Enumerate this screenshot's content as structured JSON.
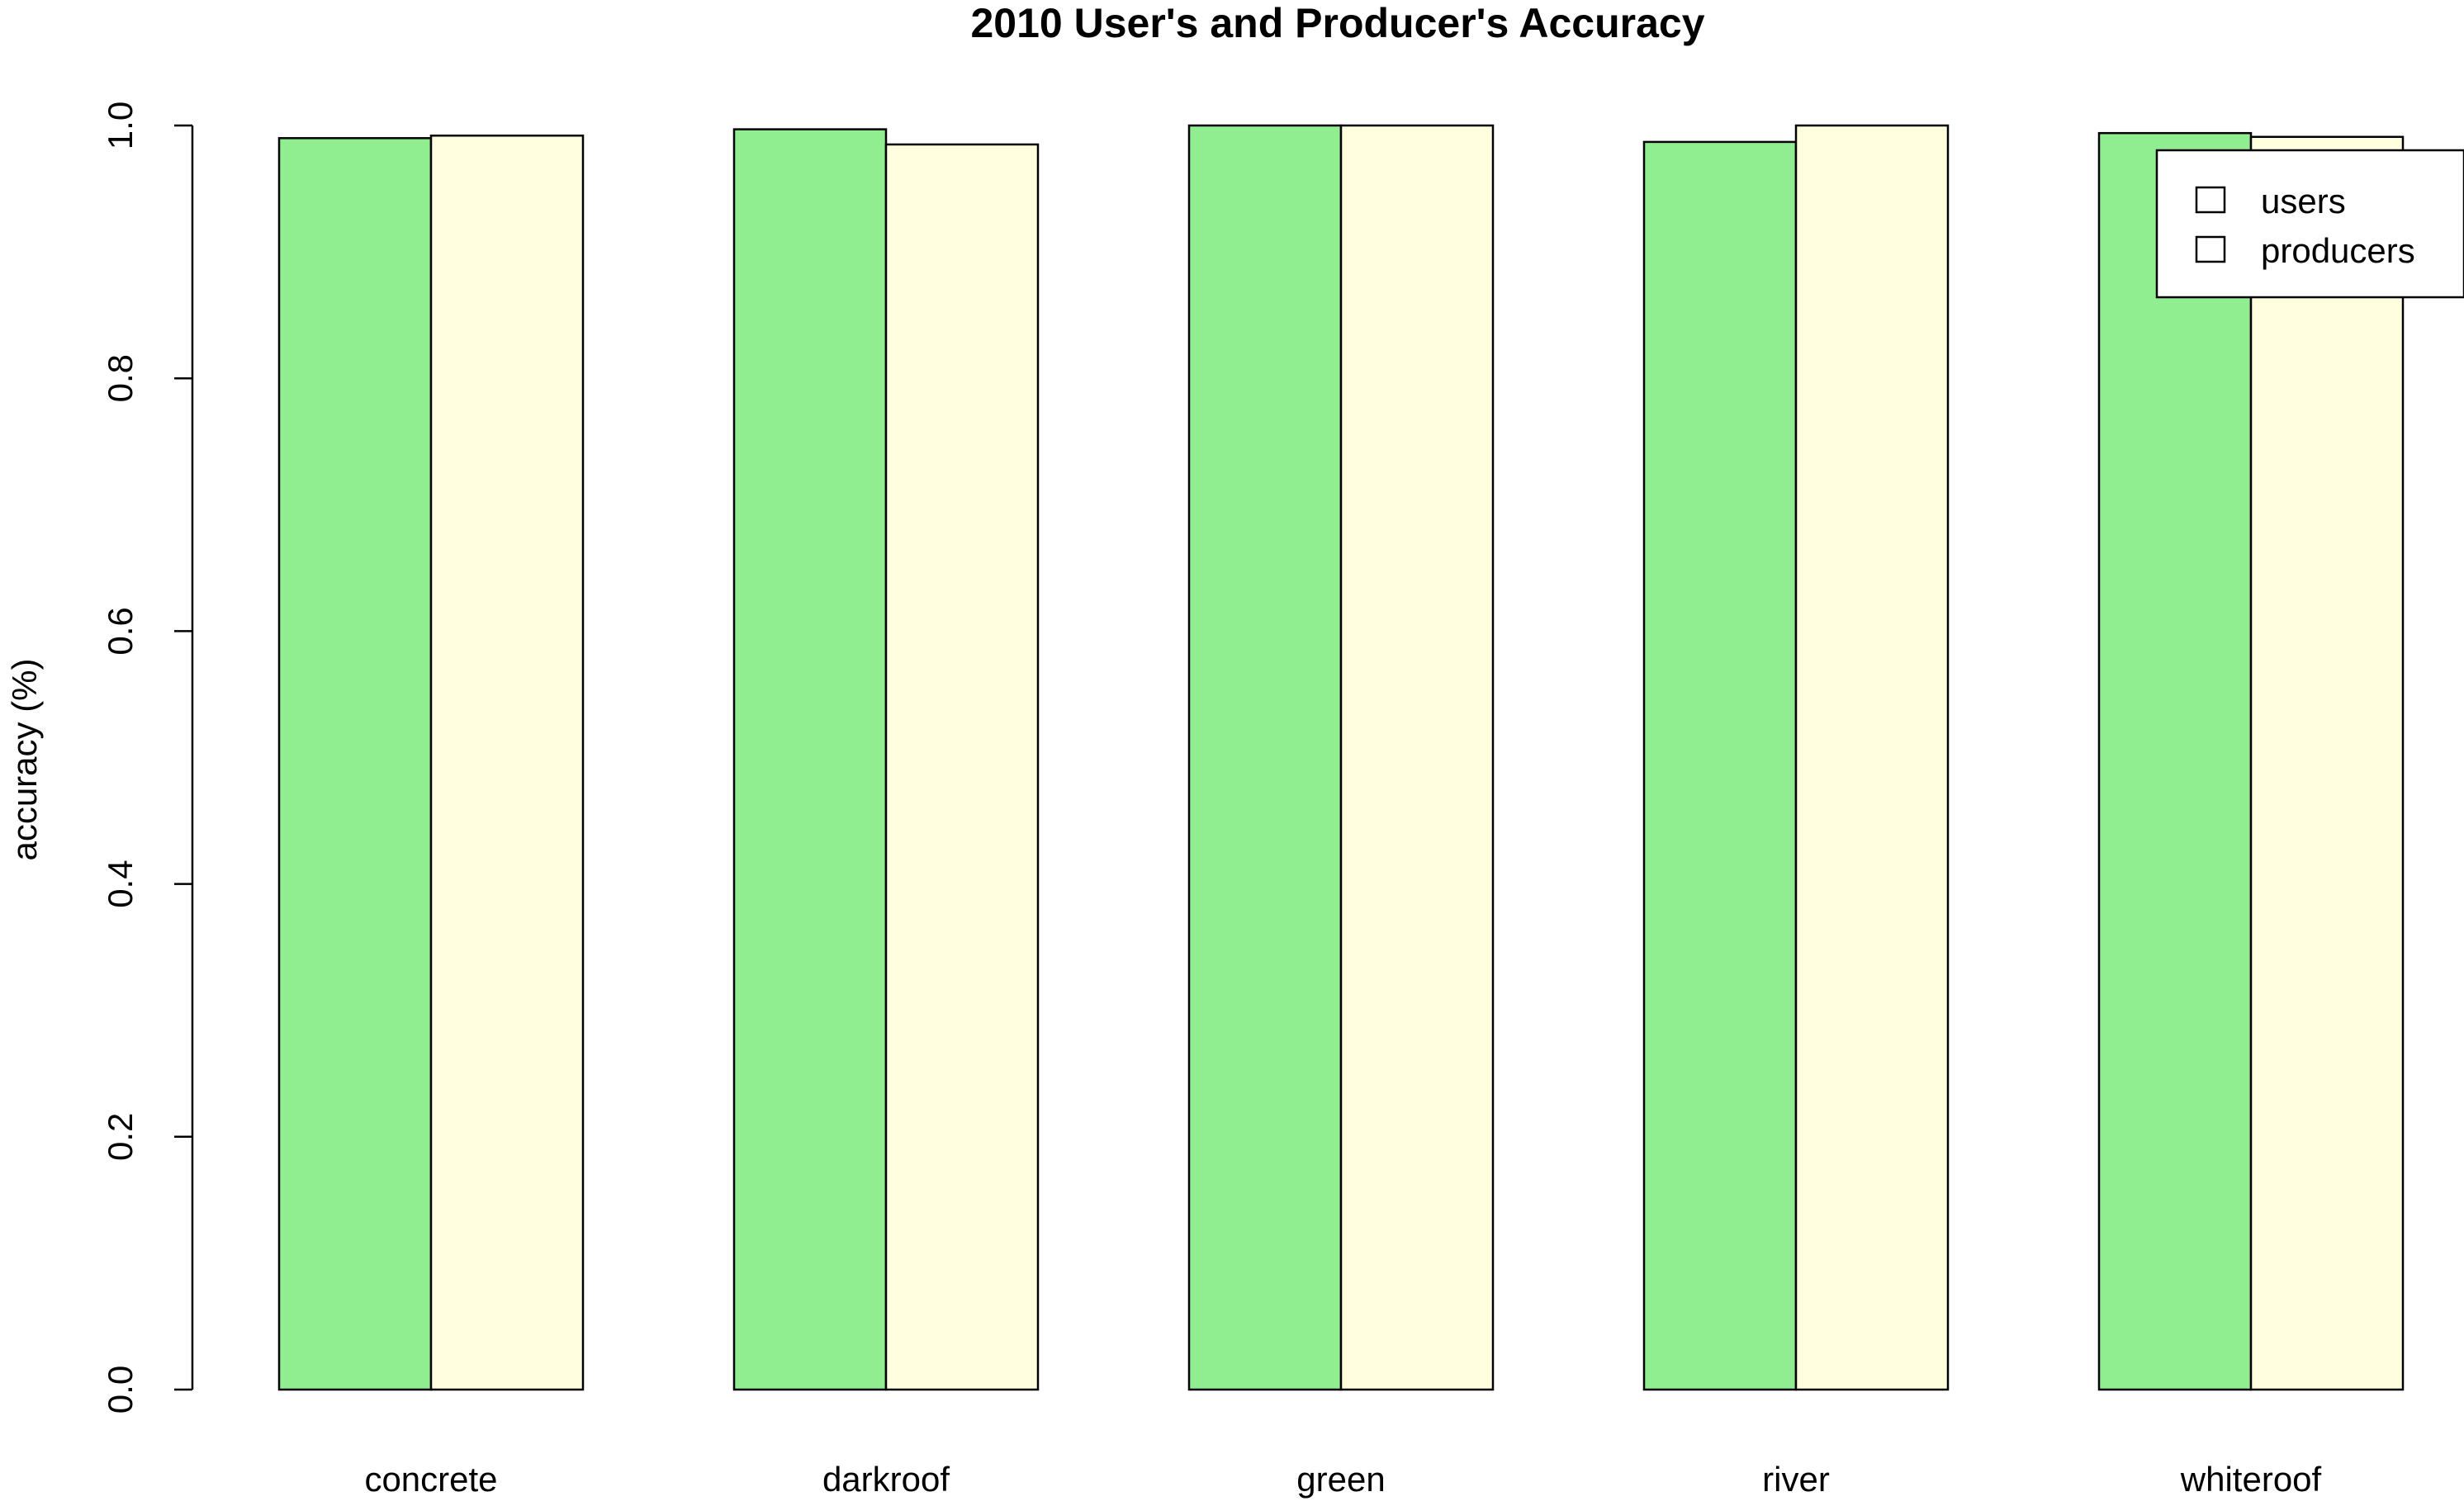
{
  "chart_data": {
    "type": "bar",
    "title": "2010 User's and Producer's Accuracy",
    "xlabel": "",
    "ylabel": "accuracy (%)",
    "ylim": [
      0,
      1
    ],
    "yticks": [
      "0.0",
      "0.2",
      "0.4",
      "0.6",
      "0.8",
      "1.0"
    ],
    "categories": [
      "concrete",
      "darkroof",
      "green",
      "river",
      "whiteroof"
    ],
    "series": [
      {
        "name": "users",
        "values": [
          0.99,
          0.997,
          1.0,
          0.987,
          0.994
        ],
        "color": "#90ee90"
      },
      {
        "name": "producers",
        "values": [
          0.992,
          0.985,
          1.0,
          1.0,
          0.991
        ],
        "color": "#ffffe0"
      }
    ],
    "grid": false,
    "legend_position": "top-right",
    "legend_swatch_fill": "#ffffff"
  }
}
